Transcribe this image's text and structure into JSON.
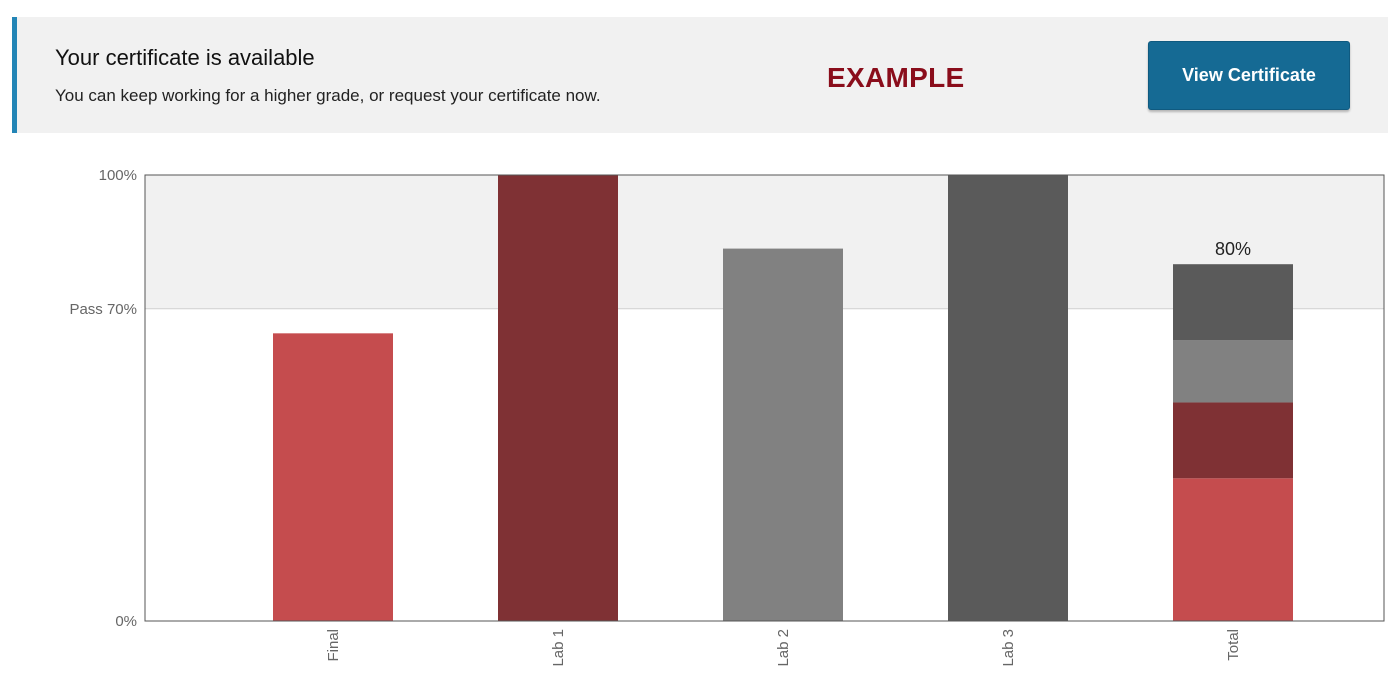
{
  "banner": {
    "title": "Your certificate is available",
    "subtitle": "You can keep working for a higher grade, or request your certificate now.",
    "watermark": "EXAMPLE",
    "button_label": "View Certificate",
    "accent_color": "#2385b6",
    "button_color": "#156a94"
  },
  "chart_data": {
    "type": "bar",
    "title": "",
    "xlabel": "",
    "ylabel": "",
    "ylim": [
      0,
      100
    ],
    "y_ticks": [
      {
        "value": 0,
        "label": "0%"
      },
      {
        "value": 70,
        "label": "Pass 70%"
      },
      {
        "value": 100,
        "label": "100%"
      }
    ],
    "pass_threshold": 70,
    "grid": false,
    "legend": "none",
    "categories": [
      "Final",
      "Lab 1",
      "Lab 2",
      "Lab 3",
      "Total"
    ],
    "values": [
      64.5,
      100,
      83.5,
      100,
      80
    ],
    "colors": [
      "#c54c4e",
      "#7f3134",
      "#818181",
      "#5a5a5a"
    ],
    "total": {
      "label": "80%",
      "segments": [
        {
          "source": "Final",
          "value": 32,
          "color": "#c54c4e"
        },
        {
          "source": "Lab 1",
          "value": 17,
          "color": "#7f3134"
        },
        {
          "source": "Lab 2",
          "value": 14,
          "color": "#818181"
        },
        {
          "source": "Lab 3",
          "value": 17,
          "color": "#5a5a5a"
        }
      ]
    }
  }
}
